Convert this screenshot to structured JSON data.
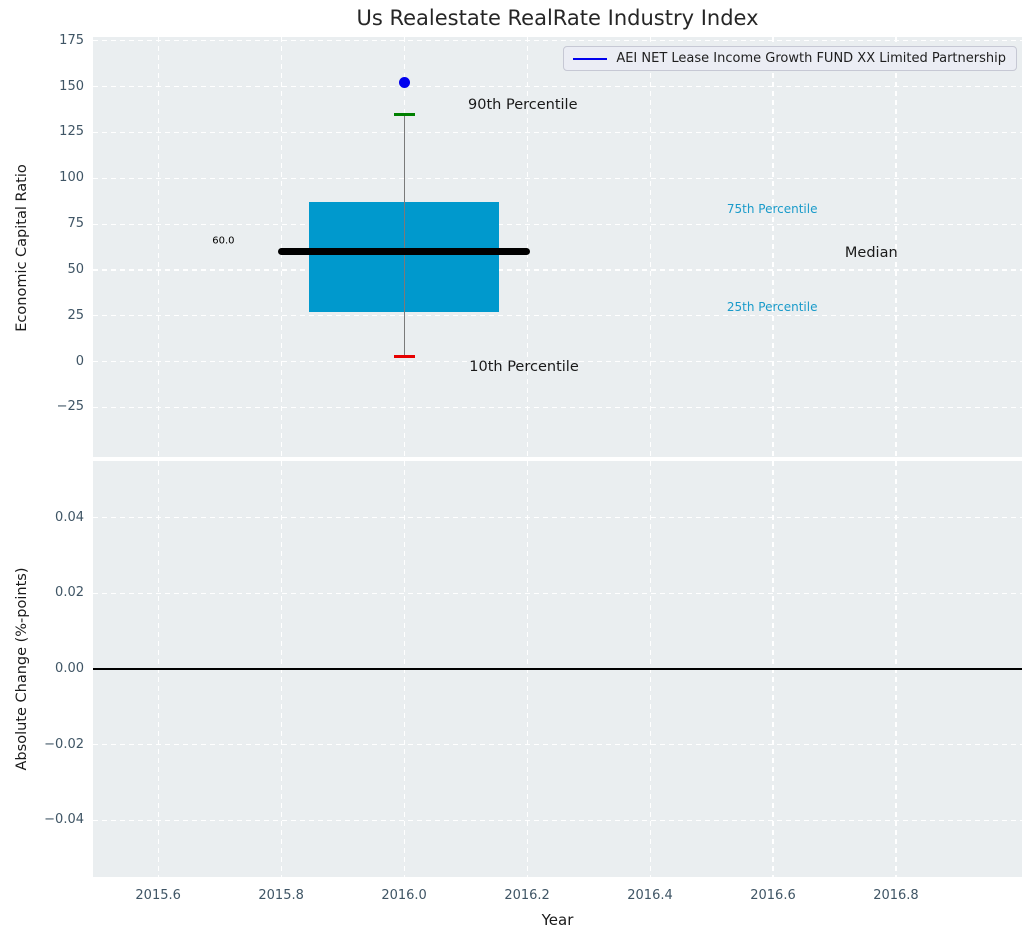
{
  "title": "Us Realestate RealRate Industry Index",
  "legend": {
    "label": "AEI NET Lease Income Growth FUND XX Limited Partnership",
    "line_color": "#0000ee"
  },
  "colors": {
    "plot_background": "#eaeef0",
    "gridline": "#ffffff",
    "tick_text": "#3f5565",
    "text": "#1f1f1f",
    "box_fill": "#0099cd",
    "median_line": "#000000",
    "whisker": "#7a7a7a",
    "cap_90th": "#008000",
    "cap_10th": "#e60000",
    "company_point": "#0000ee",
    "percentile_label": "#1a9bca",
    "zero_line": "#000000"
  },
  "chart_data": {
    "type": "boxplot",
    "title": "Us Realestate RealRate Industry Index",
    "x_axis": {
      "label": "Year",
      "xlim": [
        2015.494,
        2017.005
      ],
      "ticks": [
        {
          "value": 2015.6,
          "label": "2015.6"
        },
        {
          "value": 2015.8,
          "label": "2015.8"
        },
        {
          "value": 2016.0,
          "label": "2016.0"
        },
        {
          "value": 2016.2,
          "label": "2016.2"
        },
        {
          "value": 2016.4,
          "label": "2016.4"
        },
        {
          "value": 2016.6,
          "label": "2016.6"
        },
        {
          "value": 2016.8,
          "label": "2016.8"
        }
      ]
    },
    "top_plot": {
      "ylabel": "Economic Capital Ratio",
      "ylim": [
        -52,
        177
      ],
      "yticks": [
        {
          "value": 175,
          "label": "175"
        },
        {
          "value": 150,
          "label": "150"
        },
        {
          "value": 125,
          "label": "125"
        },
        {
          "value": 100,
          "label": "100"
        },
        {
          "value": 75,
          "label": "75"
        },
        {
          "value": 50,
          "label": "50"
        },
        {
          "value": 25,
          "label": "25"
        },
        {
          "value": 0,
          "label": "0"
        },
        {
          "value": -25,
          "label": "−25"
        }
      ],
      "box": {
        "x": 2016.0,
        "p10": 3,
        "p25": 27,
        "median": 60,
        "p75": 87,
        "p90": 135,
        "median_label": "60.0",
        "company_value": 152,
        "box_half_width": 0.155,
        "median_half_width": 0.205,
        "cap_half_width": 0.017
      },
      "annotations": [
        {
          "name": "90th-percentile-label",
          "text": "90th Percentile",
          "x": 2016.104,
          "y": 140,
          "color": "#1a1a1a",
          "size": 14.5
        },
        {
          "name": "10th-percentile-label",
          "text": "10th Percentile",
          "x": 2016.106,
          "y": -3,
          "color": "#1a1a1a",
          "size": 14.5
        },
        {
          "name": "75th-percentile-label",
          "text": "75th Percentile",
          "x": 2016.525,
          "y": 83,
          "color": "#1a9bca",
          "size": 12
        },
        {
          "name": "25th-percentile-label",
          "text": "25th Percentile",
          "x": 2016.525,
          "y": 30,
          "color": "#1a9bca",
          "size": 12
        },
        {
          "name": "median-label",
          "text": "Median",
          "x": 2016.717,
          "y": 59,
          "color": "#1a1a1a",
          "size": 14.5
        },
        {
          "name": "median-value-label",
          "text": "60.0",
          "x": 2015.688,
          "y": 66,
          "color": "#000000",
          "size": 10
        }
      ]
    },
    "bottom_plot": {
      "ylabel": "Absolute Change (%-points)",
      "ylim": [
        -0.055,
        0.055
      ],
      "yticks": [
        {
          "value": 0.04,
          "label": "0.04"
        },
        {
          "value": 0.02,
          "label": "0.02"
        },
        {
          "value": 0.0,
          "label": "0.00"
        },
        {
          "value": -0.02,
          "label": "−0.02"
        },
        {
          "value": -0.04,
          "label": "−0.04"
        }
      ],
      "zero_line_value": 0.0
    }
  }
}
